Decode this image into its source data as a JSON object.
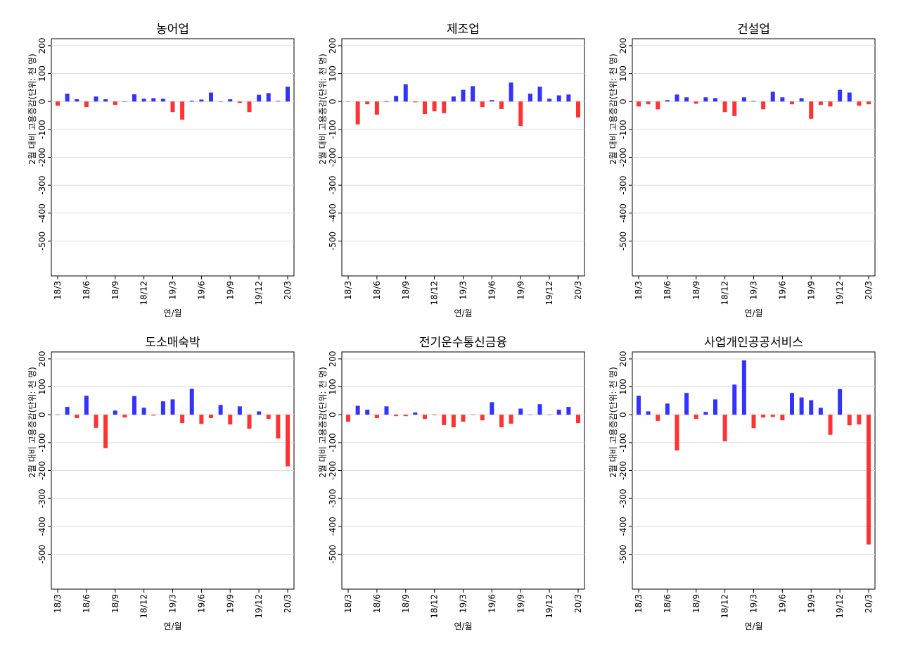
{
  "chart_data": [
    {
      "type": "bar",
      "title": "농어업",
      "xlabel": "연/월",
      "ylabel": "2월 대비 고용증감(단위: 천 명)",
      "categories": [
        "18/3",
        null,
        null,
        "18/6",
        null,
        null,
        "18/9",
        null,
        null,
        "18/12",
        null,
        null,
        "19/3",
        null,
        null,
        "19/6",
        null,
        null,
        "19/9",
        null,
        null,
        "19/12",
        null,
        null,
        "20/3"
      ],
      "values": [
        -15,
        28,
        8,
        -20,
        18,
        8,
        -12,
        0,
        26,
        10,
        12,
        10,
        -38,
        -65,
        3,
        7,
        32,
        0,
        8,
        -5,
        -38,
        24,
        30,
        2,
        53
      ],
      "positive_color": "#3333ff",
      "negative_color": "#ff3333",
      "ylim": [
        -625,
        225
      ],
      "yticks": [
        -500,
        -400,
        -300,
        -200,
        -100,
        0,
        100,
        200
      ],
      "grid": true
    },
    {
      "type": "bar",
      "title": "제조업",
      "xlabel": "연/월",
      "ylabel": "2월 대비 고용증감(단위: 천 명)",
      "categories": [
        "18/3",
        null,
        null,
        "18/6",
        null,
        null,
        "18/9",
        null,
        null,
        "18/12",
        null,
        null,
        "19/3",
        null,
        null,
        "19/6",
        null,
        null,
        "19/9",
        null,
        null,
        "19/12",
        null,
        null,
        "20/3"
      ],
      "values": [
        -1,
        -82,
        -10,
        -47,
        -2,
        20,
        62,
        -3,
        -45,
        -35,
        -42,
        18,
        42,
        55,
        -20,
        5,
        -27,
        68,
        -88,
        28,
        53,
        10,
        22,
        25,
        -57
      ],
      "positive_color": "#3333ff",
      "negative_color": "#ff3333",
      "ylim": [
        -625,
        225
      ],
      "yticks": [
        -500,
        -400,
        -300,
        -200,
        -100,
        0,
        100,
        200
      ],
      "grid": true
    },
    {
      "type": "bar",
      "title": "건설업",
      "xlabel": "연/월",
      "ylabel": "2월 대비 고용증감(단위: 천 명)",
      "categories": [
        "18/3",
        null,
        null,
        "18/6",
        null,
        null,
        "18/9",
        null,
        null,
        "18/12",
        null,
        null,
        "19/3",
        null,
        null,
        "19/6",
        null,
        null,
        "19/9",
        null,
        null,
        "19/12",
        null,
        null,
        "20/3"
      ],
      "values": [
        -18,
        -10,
        -28,
        5,
        25,
        15,
        -8,
        15,
        12,
        -38,
        -52,
        15,
        2,
        -28,
        35,
        15,
        -10,
        12,
        -62,
        -12,
        -18,
        42,
        32,
        -15,
        -10
      ],
      "positive_color": "#3333ff",
      "negative_color": "#ff3333",
      "ylim": [
        -625,
        225
      ],
      "yticks": [
        -500,
        -400,
        -300,
        -200,
        -100,
        0,
        100,
        200
      ],
      "grid": true
    },
    {
      "type": "bar",
      "title": "도소매숙박",
      "xlabel": "연/월",
      "ylabel": "2월 대비 고용증감(단위: 천 명)",
      "categories": [
        "18/3",
        null,
        null,
        "18/6",
        null,
        null,
        "18/9",
        null,
        null,
        "18/12",
        null,
        null,
        "19/3",
        null,
        null,
        "19/6",
        null,
        null,
        "19/9",
        null,
        null,
        "19/12",
        null,
        null,
        "20/3"
      ],
      "values": [
        0,
        28,
        -12,
        68,
        -47,
        -120,
        15,
        -10,
        67,
        25,
        -3,
        48,
        55,
        -30,
        93,
        -33,
        -12,
        35,
        -35,
        30,
        -50,
        12,
        -15,
        -85,
        -185
      ],
      "positive_color": "#3333ff",
      "negative_color": "#ff3333",
      "ylim": [
        -625,
        225
      ],
      "yticks": [
        -500,
        -400,
        -300,
        -200,
        -100,
        0,
        100,
        200
      ],
      "grid": true
    },
    {
      "type": "bar",
      "title": "전기운수통신금융",
      "xlabel": "연/월",
      "ylabel": "2월 대비 고용증감(단위: 천 명)",
      "categories": [
        "18/3",
        null,
        null,
        "18/6",
        null,
        null,
        "18/9",
        null,
        null,
        "18/12",
        null,
        null,
        "19/3",
        null,
        null,
        "19/6",
        null,
        null,
        "19/9",
        null,
        null,
        "19/12",
        null,
        null,
        "20/3"
      ],
      "values": [
        -25,
        32,
        18,
        -12,
        30,
        -5,
        -5,
        8,
        -15,
        -2,
        -37,
        -45,
        -25,
        0,
        -20,
        45,
        -45,
        -32,
        22,
        0,
        38,
        0,
        18,
        28,
        -30
      ],
      "positive_color": "#3333ff",
      "negative_color": "#ff3333",
      "ylim": [
        -625,
        225
      ],
      "yticks": [
        -500,
        -400,
        -300,
        -200,
        -100,
        0,
        100,
        200
      ],
      "grid": true
    },
    {
      "type": "bar",
      "title": "사업개인공공서비스",
      "xlabel": "연/월",
      "ylabel": "2월 대비 고용증감(단위: 천 명)",
      "categories": [
        "18/3",
        null,
        null,
        "18/6",
        null,
        null,
        "18/9",
        null,
        null,
        "18/12",
        null,
        null,
        "19/3",
        null,
        null,
        "19/6",
        null,
        null,
        "19/9",
        null,
        null,
        "19/12",
        null,
        null,
        "20/3"
      ],
      "values": [
        68,
        12,
        -22,
        40,
        -128,
        78,
        -15,
        10,
        55,
        -95,
        108,
        195,
        -48,
        -10,
        -8,
        -20,
        78,
        62,
        52,
        25,
        -72,
        92,
        -38,
        -35,
        -465
      ],
      "positive_color": "#3333ff",
      "negative_color": "#ff3333",
      "ylim": [
        -625,
        225
      ],
      "yticks": [
        -500,
        -400,
        -300,
        -200,
        -100,
        0,
        100,
        200
      ],
      "grid": true
    }
  ]
}
